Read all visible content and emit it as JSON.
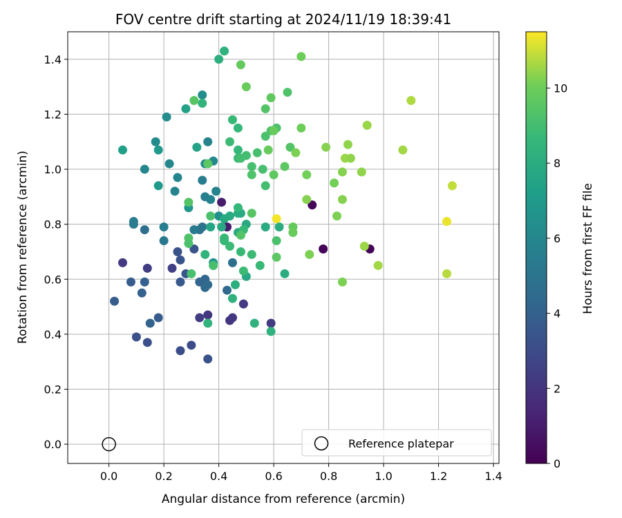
{
  "chart_data": {
    "type": "scatter",
    "title": "FOV centre drift starting at 2024/11/19 18:39:41",
    "xlabel": "Angular distance from reference (arcmin)",
    "ylabel": "Rotation from reference (arcmin)",
    "xlim": [
      -0.15,
      1.42
    ],
    "ylim": [
      -0.07,
      1.5
    ],
    "x_ticks": [
      "0.0",
      "0.2",
      "0.4",
      "0.6",
      "0.8",
      "1.0",
      "1.2",
      "1.4"
    ],
    "y_ticks": [
      "0.0",
      "0.2",
      "0.4",
      "0.6",
      "0.8",
      "1.0",
      "1.2",
      "1.4"
    ],
    "grid": true,
    "legend_position": "lower-right",
    "colorbar": {
      "label": "Hours from first FF file",
      "range": [
        0,
        11.5
      ],
      "ticks": [
        "0",
        "2",
        "4",
        "6",
        "8",
        "10"
      ],
      "colormap": "viridis"
    },
    "reference": {
      "name": "Reference platepar",
      "x": 0.0,
      "y": 0.0
    },
    "points": [
      [
        0.74,
        0.87,
        0.2
      ],
      [
        0.78,
        0.71,
        0.1
      ],
      [
        0.95,
        0.71,
        0.1
      ],
      [
        0.41,
        0.88,
        1.0
      ],
      [
        0.43,
        0.79,
        1.0
      ],
      [
        0.05,
        0.66,
        2.2
      ],
      [
        0.14,
        0.64,
        2.3
      ],
      [
        0.23,
        0.64,
        2.5
      ],
      [
        0.33,
        0.46,
        2.3
      ],
      [
        0.36,
        0.47,
        2.0
      ],
      [
        0.44,
        0.45,
        2.0
      ],
      [
        0.45,
        0.46,
        2.1
      ],
      [
        0.49,
        0.51,
        2.2
      ],
      [
        0.59,
        0.44,
        2.3
      ],
      [
        0.3,
        0.36,
        3.0
      ],
      [
        0.26,
        0.34,
        3.1
      ],
      [
        0.1,
        0.39,
        3.2
      ],
      [
        0.14,
        0.37,
        3.2
      ],
      [
        0.36,
        0.31,
        3.3
      ],
      [
        0.25,
        0.7,
        3.3
      ],
      [
        0.26,
        0.67,
        3.4
      ],
      [
        0.28,
        0.62,
        3.5
      ],
      [
        0.31,
        0.71,
        3.4
      ],
      [
        0.26,
        0.59,
        3.6
      ],
      [
        0.18,
        0.46,
        3.7
      ],
      [
        0.02,
        0.52,
        3.8
      ],
      [
        0.08,
        0.59,
        3.8
      ],
      [
        0.12,
        0.55,
        4.0
      ],
      [
        0.13,
        0.59,
        4.0
      ],
      [
        0.15,
        0.44,
        4.1
      ],
      [
        0.34,
        0.59,
        4.0
      ],
      [
        0.35,
        0.6,
        4.3
      ],
      [
        0.35,
        0.57,
        4.4
      ],
      [
        0.33,
        0.59,
        4.2
      ],
      [
        0.36,
        0.58,
        4.5
      ],
      [
        0.43,
        0.56,
        4.5
      ],
      [
        0.45,
        0.66,
        4.7
      ],
      [
        0.13,
        0.78,
        4.7
      ],
      [
        0.34,
        0.79,
        5.0
      ],
      [
        0.2,
        0.74,
        5.2
      ],
      [
        0.2,
        0.79,
        5.5
      ],
      [
        0.33,
        0.78,
        5.0
      ],
      [
        0.31,
        0.78,
        5.3
      ],
      [
        0.09,
        0.81,
        5.4
      ],
      [
        0.09,
        0.8,
        5.4
      ],
      [
        0.34,
        0.96,
        5.5
      ],
      [
        0.35,
        0.9,
        5.6
      ],
      [
        0.37,
        0.89,
        5.7
      ],
      [
        0.39,
        0.92,
        5.8
      ],
      [
        0.36,
        1.1,
        5.8
      ],
      [
        0.25,
        0.97,
        5.9
      ],
      [
        0.24,
        0.92,
        5.8
      ],
      [
        0.22,
        1.02,
        6.0
      ],
      [
        0.13,
        1.0,
        6.0
      ],
      [
        0.17,
        1.1,
        6.2
      ],
      [
        0.38,
        1.03,
        6.1
      ],
      [
        0.35,
        1.02,
        6.2
      ],
      [
        0.34,
        1.27,
        6.3
      ],
      [
        0.21,
        1.19,
        6.3
      ],
      [
        0.4,
        0.83,
        6.4
      ],
      [
        0.38,
        0.66,
        6.6
      ],
      [
        0.29,
        0.86,
        6.8
      ],
      [
        0.18,
        0.94,
        7.0
      ],
      [
        0.18,
        1.07,
        7.0
      ],
      [
        0.05,
        1.07,
        7.3
      ],
      [
        0.28,
        1.22,
        7.4
      ],
      [
        0.32,
        1.08,
        7.5
      ],
      [
        0.36,
        1.02,
        7.6
      ],
      [
        0.37,
        0.79,
        7.6
      ],
      [
        0.41,
        0.79,
        7.8
      ],
      [
        0.42,
        0.82,
        7.8
      ],
      [
        0.44,
        0.83,
        7.9
      ],
      [
        0.47,
        0.84,
        8.0
      ],
      [
        0.48,
        0.84,
        7.9
      ],
      [
        0.5,
        0.8,
        7.8
      ],
      [
        0.5,
        0.61,
        7.7
      ],
      [
        0.47,
        0.77,
        7.9
      ],
      [
        0.57,
        0.79,
        7.9
      ],
      [
        0.62,
        0.79,
        8.0
      ],
      [
        0.64,
        0.62,
        8.0
      ],
      [
        0.59,
        0.41,
        8.3
      ],
      [
        0.53,
        0.44,
        8.3
      ],
      [
        0.45,
        0.53,
        8.3
      ],
      [
        0.46,
        0.58,
        8.1
      ],
      [
        0.4,
        1.4,
        8.1
      ],
      [
        0.36,
        0.44,
        8.4
      ],
      [
        0.35,
        0.69,
        8.4
      ],
      [
        0.38,
        0.65,
        8.2
      ],
      [
        0.34,
        1.24,
        8.4
      ],
      [
        0.42,
        1.43,
        8.3
      ],
      [
        0.42,
        0.74,
        8.6
      ],
      [
        0.42,
        0.75,
        8.7
      ],
      [
        0.44,
        0.72,
        8.8
      ],
      [
        0.48,
        0.7,
        8.7
      ],
      [
        0.49,
        0.63,
        8.8
      ],
      [
        0.52,
        0.69,
        8.8
      ],
      [
        0.55,
        0.65,
        8.7
      ],
      [
        0.47,
        0.86,
        8.6
      ],
      [
        0.49,
        0.78,
        8.7
      ],
      [
        0.47,
        1.15,
        8.6
      ],
      [
        0.45,
        1.18,
        8.7
      ],
      [
        0.47,
        1.07,
        8.6
      ],
      [
        0.44,
        1.1,
        8.8
      ],
      [
        0.47,
        1.04,
        8.7
      ],
      [
        0.48,
        1.04,
        9.0
      ],
      [
        0.5,
        1.05,
        9.0
      ],
      [
        0.52,
        1.01,
        9.1
      ],
      [
        0.52,
        0.98,
        9.3
      ],
      [
        0.54,
        1.06,
        9.1
      ],
      [
        0.57,
        1.12,
        9.2
      ],
      [
        0.56,
        1.0,
        9.1
      ],
      [
        0.57,
        0.94,
        9.0
      ],
      [
        0.57,
        1.22,
        9.4
      ],
      [
        0.59,
        1.14,
        9.3
      ],
      [
        0.61,
        1.15,
        9.2
      ],
      [
        0.61,
        0.74,
        9.2
      ],
      [
        0.65,
        1.28,
        9.3
      ],
      [
        0.66,
        1.08,
        9.4
      ],
      [
        0.64,
        1.01,
        9.6
      ],
      [
        0.6,
        0.98,
        9.7
      ],
      [
        0.61,
        0.68,
        9.6
      ],
      [
        0.52,
        0.84,
        9.5
      ],
      [
        0.48,
        0.76,
        9.4
      ],
      [
        0.37,
        0.83,
        9.2
      ],
      [
        0.38,
        0.65,
        9.1
      ],
      [
        0.31,
        1.25,
        9.5
      ],
      [
        0.29,
        0.88,
        9.4
      ],
      [
        0.29,
        0.75,
        9.3
      ],
      [
        0.29,
        0.73,
        9.2
      ],
      [
        0.3,
        0.62,
        9.1
      ],
      [
        0.36,
        1.02,
        9.6
      ],
      [
        0.48,
        1.38,
        9.8
      ],
      [
        0.5,
        1.3,
        9.9
      ],
      [
        0.59,
        1.26,
        9.7
      ],
      [
        0.58,
        1.07,
        9.9
      ],
      [
        0.6,
        1.14,
        9.9
      ],
      [
        0.67,
        0.79,
        9.8
      ],
      [
        0.67,
        0.77,
        9.9
      ],
      [
        0.7,
        1.15,
        10.0
      ],
      [
        0.7,
        1.41,
        10.0
      ],
      [
        0.68,
        1.06,
        10.2
      ],
      [
        0.72,
        0.89,
        10.3
      ],
      [
        0.72,
        0.98,
        10.1
      ],
      [
        0.73,
        0.69,
        10.2
      ],
      [
        0.79,
        1.08,
        10.3
      ],
      [
        0.82,
        0.95,
        10.1
      ],
      [
        0.83,
        0.83,
        10.2
      ],
      [
        0.85,
        0.99,
        10.3
      ],
      [
        0.85,
        0.89,
        10.3
      ],
      [
        0.85,
        0.59,
        10.2
      ],
      [
        0.86,
        1.04,
        10.5
      ],
      [
        0.87,
        1.09,
        10.4
      ],
      [
        0.88,
        1.04,
        10.4
      ],
      [
        0.92,
        0.99,
        10.4
      ],
      [
        0.93,
        0.72,
        10.5
      ],
      [
        0.94,
        1.16,
        10.5
      ],
      [
        0.98,
        0.65,
        10.6
      ],
      [
        1.07,
        1.07,
        10.6
      ],
      [
        1.1,
        1.25,
        10.7
      ],
      [
        1.23,
        0.62,
        10.8
      ],
      [
        1.25,
        0.94,
        10.9
      ],
      [
        1.23,
        0.81,
        11.3
      ],
      [
        0.61,
        0.82,
        11.4
      ]
    ]
  }
}
